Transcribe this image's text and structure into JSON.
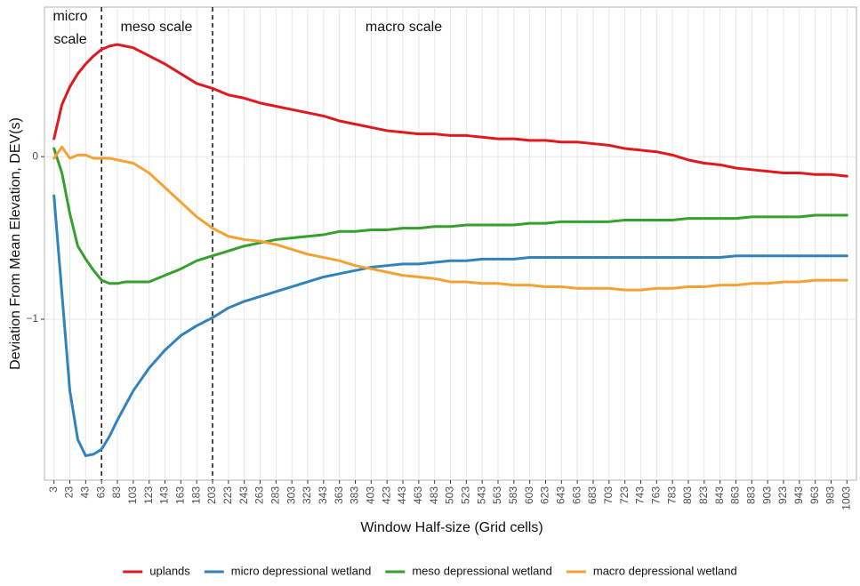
{
  "chart_data": {
    "type": "line",
    "x_label": "Window Half-size (Grid cells)",
    "y_label": "Deviation From Mean Elevation, DEV(s)",
    "annotations": [
      "micro",
      "scale",
      "meso scale",
      "macro scale"
    ],
    "vlines": [
      63,
      203
    ],
    "legend": "bottom",
    "grid": true,
    "xlim": [
      -9,
      1015
    ],
    "ylim": [
      -1.99,
      0.92
    ],
    "xticks": [
      3,
      23,
      43,
      63,
      83,
      103,
      123,
      143,
      163,
      183,
      203,
      223,
      243,
      263,
      283,
      303,
      323,
      343,
      363,
      383,
      403,
      423,
      443,
      463,
      483,
      503,
      523,
      543,
      563,
      583,
      603,
      623,
      643,
      663,
      683,
      703,
      723,
      743,
      763,
      783,
      803,
      823,
      843,
      863,
      883,
      903,
      923,
      943,
      963,
      983,
      1003
    ],
    "yticks": [
      {
        "value": -1,
        "label": "−1"
      },
      0
    ],
    "x": [
      3,
      13,
      23,
      33,
      43,
      53,
      63,
      73,
      83,
      93,
      103,
      123,
      143,
      163,
      183,
      203,
      223,
      243,
      263,
      283,
      303,
      323,
      343,
      363,
      383,
      403,
      423,
      443,
      463,
      483,
      503,
      523,
      543,
      563,
      583,
      603,
      623,
      643,
      663,
      683,
      703,
      723,
      743,
      763,
      783,
      803,
      823,
      843,
      863,
      883,
      903,
      923,
      943,
      963,
      983,
      1003
    ],
    "series": [
      {
        "name": "uplands",
        "color": "#e0191f",
        "values": [
          0.11,
          0.32,
          0.43,
          0.51,
          0.57,
          0.62,
          0.66,
          0.68,
          0.69,
          0.68,
          0.67,
          0.62,
          0.57,
          0.51,
          0.45,
          0.42,
          0.38,
          0.36,
          0.33,
          0.31,
          0.29,
          0.27,
          0.25,
          0.22,
          0.2,
          0.18,
          0.16,
          0.15,
          0.14,
          0.14,
          0.13,
          0.13,
          0.12,
          0.11,
          0.11,
          0.1,
          0.1,
          0.09,
          0.09,
          0.08,
          0.07,
          0.05,
          0.04,
          0.03,
          0.01,
          -0.02,
          -0.04,
          -0.05,
          -0.07,
          -0.08,
          -0.09,
          -0.1,
          -0.1,
          -0.11,
          -0.11,
          -0.12
        ]
      },
      {
        "name": "micro depressional wetland",
        "color": "#3282bd",
        "values": [
          -0.24,
          -0.84,
          -1.44,
          -1.74,
          -1.84,
          -1.83,
          -1.8,
          -1.72,
          -1.62,
          -1.53,
          -1.44,
          -1.3,
          -1.19,
          -1.1,
          -1.04,
          -0.99,
          -0.93,
          -0.89,
          -0.86,
          -0.83,
          -0.8,
          -0.77,
          -0.74,
          -0.72,
          -0.7,
          -0.68,
          -0.67,
          -0.66,
          -0.66,
          -0.65,
          -0.64,
          -0.64,
          -0.63,
          -0.63,
          -0.63,
          -0.62,
          -0.62,
          -0.62,
          -0.62,
          -0.62,
          -0.62,
          -0.62,
          -0.62,
          -0.62,
          -0.62,
          -0.62,
          -0.62,
          -0.62,
          -0.61,
          -0.61,
          -0.61,
          -0.61,
          -0.61,
          -0.61,
          -0.61,
          -0.61
        ]
      },
      {
        "name": "meso depressional wetland",
        "color": "#35a02e",
        "values": [
          0.05,
          -0.1,
          -0.35,
          -0.55,
          -0.63,
          -0.7,
          -0.76,
          -0.78,
          -0.78,
          -0.77,
          -0.77,
          -0.77,
          -0.73,
          -0.69,
          -0.64,
          -0.61,
          -0.58,
          -0.55,
          -0.53,
          -0.51,
          -0.5,
          -0.49,
          -0.48,
          -0.46,
          -0.46,
          -0.45,
          -0.45,
          -0.44,
          -0.44,
          -0.43,
          -0.43,
          -0.42,
          -0.42,
          -0.42,
          -0.42,
          -0.41,
          -0.41,
          -0.4,
          -0.4,
          -0.4,
          -0.4,
          -0.39,
          -0.39,
          -0.39,
          -0.39,
          -0.38,
          -0.38,
          -0.38,
          -0.38,
          -0.37,
          -0.37,
          -0.37,
          -0.37,
          -0.36,
          -0.36,
          -0.36
        ]
      },
      {
        "name": "macro depressional wetland",
        "color": "#f5a234",
        "values": [
          -0.01,
          0.06,
          -0.01,
          0.01,
          0.01,
          -0.01,
          -0.01,
          -0.01,
          -0.02,
          -0.03,
          -0.04,
          -0.1,
          -0.19,
          -0.28,
          -0.37,
          -0.44,
          -0.49,
          -0.51,
          -0.52,
          -0.54,
          -0.57,
          -0.6,
          -0.62,
          -0.64,
          -0.67,
          -0.69,
          -0.71,
          -0.73,
          -0.74,
          -0.75,
          -0.77,
          -0.77,
          -0.78,
          -0.78,
          -0.79,
          -0.79,
          -0.8,
          -0.8,
          -0.81,
          -0.81,
          -0.81,
          -0.82,
          -0.82,
          -0.81,
          -0.81,
          -0.8,
          -0.8,
          -0.79,
          -0.79,
          -0.78,
          -0.78,
          -0.77,
          -0.77,
          -0.76,
          -0.76,
          -0.76
        ]
      }
    ]
  }
}
